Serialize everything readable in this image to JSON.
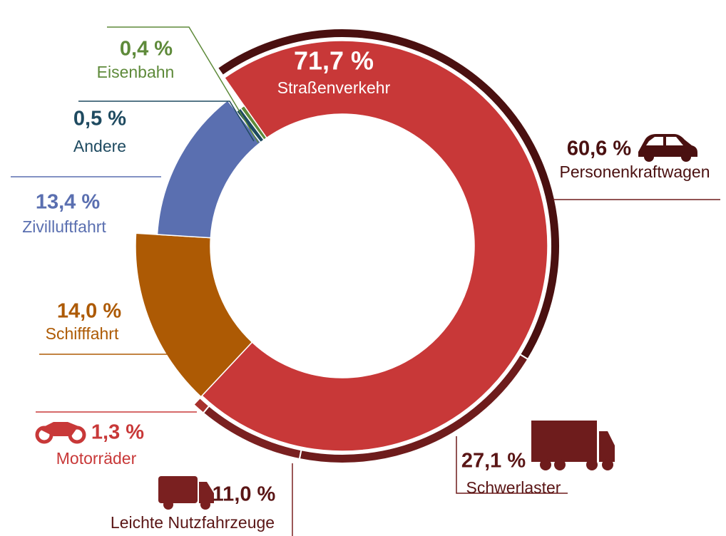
{
  "chart_data": {
    "type": "donut",
    "rings": [
      {
        "labels": [
          "Straßenverkehr",
          "Schifffahrt",
          "Zivilluftfahrt",
          "Andere",
          "Eisenbahn"
        ],
        "values": [
          71.7,
          14.0,
          13.4,
          0.5,
          0.4
        ],
        "value_labels": [
          "71,7 %",
          "14,0 %",
          "13,4 %",
          "0,5 %",
          "0,4 %"
        ],
        "colors": [
          "#c83838",
          "#ad5a04",
          "#5a6fb0",
          "#1e4a60",
          "#5e8a3a"
        ]
      },
      {
        "labels": [
          "Personenkraftwagen",
          "Schwerlaster",
          "Leichte Nutzfahrzeuge",
          "Motorräder"
        ],
        "values": [
          60.6,
          27.1,
          11.0,
          1.3
        ],
        "value_labels": [
          "60,6 %",
          "27,1 %",
          "11,0 %",
          "1,3 %"
        ],
        "colors": [
          "#4a1010",
          "#6e1c1c",
          "#7a2020",
          "#a8302c"
        ]
      }
    ]
  }
}
